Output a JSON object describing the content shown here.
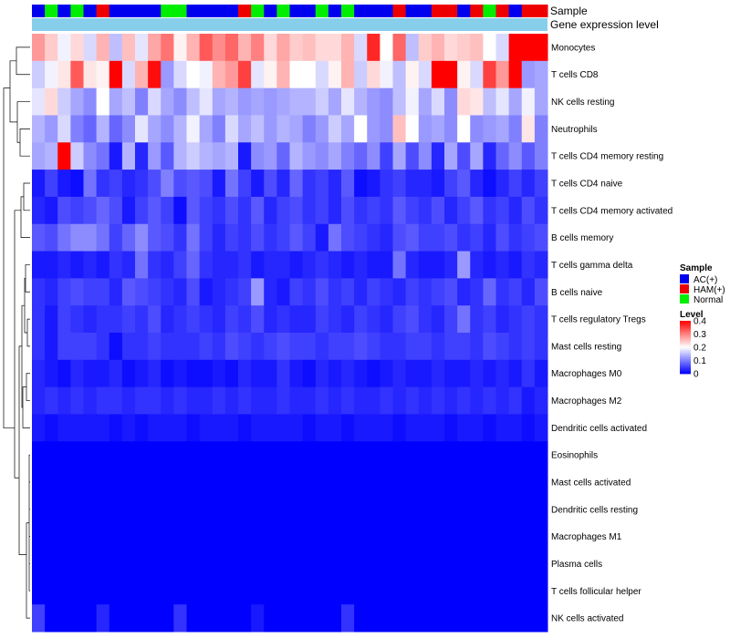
{
  "chart_data": {
    "type": "heatmap",
    "title": "",
    "annotation_labels": {
      "sample": "Sample",
      "expression": "Gene expression level"
    },
    "rows": [
      "Monocytes",
      "T cells CD8",
      "NK cells resting",
      "Neutrophils",
      "T cells CD4 memory resting",
      "T cells CD4 naive",
      "T cells CD4 memory activated",
      "B cells memory",
      "T cells gamma delta",
      "B cells naive",
      "T cells regulatory  Tregs",
      "Mast cells resting",
      "Macrophages M0",
      "Macrophages M2",
      "Dendritic cells activated",
      "Eosinophils",
      "Mast cells activated",
      "Dendritic cells resting",
      "Macrophages M1",
      "Plasma cells",
      "T cells follicular helper",
      "NK cells activated"
    ],
    "sample_groups": [
      "A",
      "N",
      "A",
      "N",
      "A",
      "H",
      "A",
      "A",
      "A",
      "A",
      "N",
      "N",
      "A",
      "A",
      "A",
      "A",
      "H",
      "N",
      "A",
      "N",
      "A",
      "A",
      "N",
      "A",
      "N",
      "A",
      "A",
      "A",
      "H",
      "A",
      "A",
      "H",
      "H",
      "A",
      "H",
      "N",
      "H",
      "A",
      "H",
      "H"
    ],
    "values": [
      [
        0.28,
        0.24,
        0.19,
        0.23,
        0.17,
        0.26,
        0.15,
        0.25,
        0.18,
        0.27,
        0.31,
        0.21,
        0.26,
        0.33,
        0.29,
        0.32,
        0.26,
        0.3,
        0.23,
        0.27,
        0.24,
        0.25,
        0.23,
        0.23,
        0.26,
        0.17,
        0.37,
        0.2,
        0.32,
        0.15,
        0.24,
        0.26,
        0.23,
        0.24,
        0.25,
        0.2,
        0.17,
        0.4,
        0.4,
        0.4
      ],
      [
        0.16,
        0.19,
        0.22,
        0.33,
        0.22,
        0.21,
        0.4,
        0.17,
        0.26,
        0.39,
        0.12,
        0.17,
        0.2,
        0.19,
        0.26,
        0.28,
        0.35,
        0.18,
        0.21,
        0.26,
        0.2,
        0.2,
        0.17,
        0.21,
        0.26,
        0.16,
        0.23,
        0.19,
        0.15,
        0.21,
        0.17,
        0.4,
        0.4,
        0.21,
        0.17,
        0.35,
        0.28,
        0.4,
        0.12,
        0.13
      ],
      [
        0.18,
        0.23,
        0.16,
        0.13,
        0.11,
        0.2,
        0.13,
        0.15,
        0.1,
        0.17,
        0.13,
        0.11,
        0.15,
        0.18,
        0.13,
        0.14,
        0.12,
        0.13,
        0.12,
        0.13,
        0.14,
        0.14,
        0.16,
        0.13,
        0.18,
        0.14,
        0.12,
        0.11,
        0.15,
        0.19,
        0.13,
        0.17,
        0.11,
        0.23,
        0.22,
        0.15,
        0.18,
        0.13,
        0.19,
        0.13
      ],
      [
        0.14,
        0.12,
        0.17,
        0.1,
        0.08,
        0.14,
        0.08,
        0.11,
        0.18,
        0.13,
        0.11,
        0.14,
        0.19,
        0.13,
        0.1,
        0.17,
        0.13,
        0.15,
        0.12,
        0.14,
        0.13,
        0.1,
        0.12,
        0.16,
        0.13,
        0.2,
        0.12,
        0.11,
        0.25,
        0.2,
        0.12,
        0.13,
        0.11,
        0.2,
        0.11,
        0.12,
        0.13,
        0.1,
        0.22,
        0.1
      ],
      [
        0.13,
        0.14,
        0.4,
        0.16,
        0.11,
        0.09,
        0.02,
        0.14,
        0.03,
        0.12,
        0.07,
        0.14,
        0.16,
        0.14,
        0.13,
        0.14,
        0.02,
        0.11,
        0.12,
        0.08,
        0.14,
        0.12,
        0.11,
        0.13,
        0.1,
        0.08,
        0.11,
        0.05,
        0.13,
        0.06,
        0.11,
        0.03,
        0.13,
        0.06,
        0.13,
        0.03,
        0.08,
        0.11,
        0.07,
        0.1
      ],
      [
        0.02,
        0.05,
        0.02,
        0.01,
        0.09,
        0.04,
        0.05,
        0.03,
        0.04,
        0.06,
        0.1,
        0.06,
        0.07,
        0.06,
        0.02,
        0.09,
        0.05,
        0.02,
        0.06,
        0.03,
        0.08,
        0.04,
        0.05,
        0.03,
        0.07,
        0.01,
        0.02,
        0.04,
        0.05,
        0.03,
        0.03,
        0.02,
        0.05,
        0.07,
        0.03,
        0.01,
        0.03,
        0.05,
        0.03,
        0.05
      ],
      [
        0.03,
        0.02,
        0.06,
        0.05,
        0.06,
        0.08,
        0.06,
        0.02,
        0.05,
        0.07,
        0.05,
        0.01,
        0.07,
        0.05,
        0.04,
        0.06,
        0.04,
        0.07,
        0.03,
        0.05,
        0.06,
        0.04,
        0.05,
        0.03,
        0.06,
        0.04,
        0.05,
        0.04,
        0.07,
        0.05,
        0.04,
        0.06,
        0.03,
        0.05,
        0.07,
        0.04,
        0.05,
        0.03,
        0.06,
        0.04
      ],
      [
        0.07,
        0.06,
        0.09,
        0.11,
        0.11,
        0.09,
        0.05,
        0.08,
        0.11,
        0.07,
        0.06,
        0.04,
        0.09,
        0.05,
        0.03,
        0.05,
        0.04,
        0.06,
        0.04,
        0.05,
        0.07,
        0.05,
        0.02,
        0.09,
        0.06,
        0.05,
        0.04,
        0.03,
        0.06,
        0.07,
        0.05,
        0.05,
        0.06,
        0.04,
        0.05,
        0.03,
        0.06,
        0.04,
        0.05,
        0.06
      ],
      [
        0.02,
        0.02,
        0.03,
        0.02,
        0.03,
        0.02,
        0.04,
        0.03,
        0.09,
        0.04,
        0.03,
        0.05,
        0.08,
        0.04,
        0.03,
        0.03,
        0.04,
        0.02,
        0.03,
        0.03,
        0.02,
        0.03,
        0.04,
        0.03,
        0.02,
        0.03,
        0.02,
        0.02,
        0.09,
        0.03,
        0.02,
        0.02,
        0.03,
        0.12,
        0.03,
        0.02,
        0.03,
        0.02,
        0.04,
        0.03
      ],
      [
        0.04,
        0.03,
        0.05,
        0.06,
        0.05,
        0.05,
        0.03,
        0.07,
        0.06,
        0.05,
        0.04,
        0.03,
        0.06,
        0.02,
        0.03,
        0.04,
        0.05,
        0.12,
        0.03,
        0.02,
        0.05,
        0.04,
        0.06,
        0.04,
        0.05,
        0.03,
        0.05,
        0.04,
        0.03,
        0.05,
        0.04,
        0.05,
        0.06,
        0.03,
        0.04,
        0.08,
        0.04,
        0.05,
        0.03,
        0.06
      ],
      [
        0.04,
        0.02,
        0.05,
        0.04,
        0.03,
        0.04,
        0.04,
        0.05,
        0.04,
        0.06,
        0.03,
        0.04,
        0.05,
        0.04,
        0.03,
        0.05,
        0.04,
        0.06,
        0.03,
        0.04,
        0.03,
        0.03,
        0.05,
        0.04,
        0.03,
        0.05,
        0.04,
        0.03,
        0.05,
        0.06,
        0.04,
        0.03,
        0.05,
        0.09,
        0.04,
        0.05,
        0.03,
        0.04,
        0.05,
        0.04
      ],
      [
        0.04,
        0.02,
        0.05,
        0.05,
        0.05,
        0.04,
        0.01,
        0.04,
        0.04,
        0.05,
        0.04,
        0.04,
        0.04,
        0.05,
        0.04,
        0.06,
        0.05,
        0.04,
        0.05,
        0.06,
        0.05,
        0.05,
        0.04,
        0.05,
        0.05,
        0.06,
        0.05,
        0.04,
        0.04,
        0.05,
        0.05,
        0.04,
        0.05,
        0.05,
        0.04,
        0.06,
        0.05,
        0.04,
        0.05,
        0.04
      ],
      [
        0.03,
        0.02,
        0.01,
        0.03,
        0.02,
        0.02,
        0.03,
        0.01,
        0.02,
        0.03,
        0.01,
        0.02,
        0.01,
        0.01,
        0.02,
        0.01,
        0.03,
        0.02,
        0.02,
        0.04,
        0.02,
        0.01,
        0.03,
        0.02,
        0.03,
        0.02,
        0.01,
        0.02,
        0.03,
        0.02,
        0.02,
        0.03,
        0.02,
        0.02,
        0.03,
        0.02,
        0.03,
        0.02,
        0.04,
        0.02
      ],
      [
        0.03,
        0.04,
        0.03,
        0.04,
        0.03,
        0.04,
        0.04,
        0.03,
        0.04,
        0.04,
        0.03,
        0.04,
        0.03,
        0.03,
        0.04,
        0.03,
        0.04,
        0.03,
        0.03,
        0.04,
        0.03,
        0.03,
        0.04,
        0.03,
        0.04,
        0.03,
        0.03,
        0.04,
        0.03,
        0.04,
        0.03,
        0.04,
        0.03,
        0.04,
        0.03,
        0.04,
        0.03,
        0.04,
        0.02,
        0.03
      ],
      [
        0.02,
        0.01,
        0.02,
        0.02,
        0.02,
        0.02,
        0.01,
        0.02,
        0.01,
        0.02,
        0.02,
        0.02,
        0.01,
        0.02,
        0.02,
        0.02,
        0.01,
        0.02,
        0.02,
        0.02,
        0.02,
        0.01,
        0.02,
        0.02,
        0.01,
        0.02,
        0.02,
        0.02,
        0.01,
        0.02,
        0.02,
        0.02,
        0.01,
        0.02,
        0.02,
        0.01,
        0.02,
        0.02,
        0.01,
        0.02
      ],
      [
        0,
        0,
        0,
        0,
        0,
        0,
        0,
        0,
        0,
        0,
        0,
        0,
        0,
        0,
        0,
        0,
        0,
        0,
        0,
        0,
        0,
        0,
        0,
        0,
        0,
        0,
        0,
        0,
        0,
        0,
        0,
        0,
        0,
        0,
        0,
        0,
        0,
        0,
        0,
        0
      ],
      [
        0,
        0,
        0,
        0,
        0,
        0,
        0,
        0,
        0,
        0,
        0,
        0,
        0,
        0,
        0,
        0,
        0,
        0,
        0,
        0,
        0,
        0,
        0,
        0,
        0,
        0,
        0,
        0,
        0,
        0,
        0,
        0,
        0,
        0,
        0,
        0,
        0,
        0,
        0,
        0
      ],
      [
        0,
        0,
        0,
        0,
        0,
        0,
        0,
        0,
        0,
        0,
        0,
        0,
        0,
        0,
        0,
        0,
        0,
        0,
        0,
        0,
        0,
        0,
        0,
        0,
        0,
        0,
        0,
        0,
        0,
        0,
        0,
        0,
        0,
        0,
        0,
        0,
        0,
        0,
        0,
        0
      ],
      [
        0,
        0,
        0,
        0,
        0,
        0,
        0,
        0,
        0,
        0,
        0,
        0,
        0,
        0,
        0,
        0,
        0,
        0,
        0,
        0,
        0,
        0,
        0,
        0,
        0,
        0,
        0,
        0,
        0,
        0,
        0,
        0,
        0,
        0,
        0,
        0,
        0,
        0,
        0,
        0
      ],
      [
        0,
        0,
        0,
        0,
        0,
        0,
        0,
        0,
        0,
        0,
        0,
        0,
        0,
        0,
        0,
        0,
        0,
        0,
        0,
        0,
        0,
        0,
        0,
        0,
        0,
        0,
        0,
        0,
        0,
        0,
        0,
        0,
        0,
        0,
        0,
        0,
        0,
        0,
        0,
        0
      ],
      [
        0,
        0,
        0,
        0,
        0,
        0,
        0,
        0,
        0,
        0,
        0,
        0,
        0,
        0,
        0,
        0,
        0,
        0,
        0,
        0,
        0,
        0,
        0,
        0,
        0,
        0,
        0,
        0,
        0,
        0,
        0,
        0,
        0,
        0,
        0,
        0,
        0,
        0,
        0,
        0
      ],
      [
        0.05,
        0,
        0,
        0,
        0,
        0.03,
        0,
        0,
        0,
        0,
        0,
        0.04,
        0,
        0,
        0,
        0,
        0,
        0.02,
        0,
        0,
        0,
        0,
        0,
        0,
        0.04,
        0,
        0,
        0,
        0,
        0,
        0,
        0,
        0,
        0,
        0,
        0,
        0,
        0,
        0,
        0
      ]
    ],
    "color_scale": {
      "min": 0,
      "max": 0.4,
      "mid": 0.2,
      "low_color": "#0000ff",
      "mid_color": "#ffffff",
      "high_color": "#ff0000"
    },
    "sample_legend": {
      "title": "Sample",
      "items": [
        {
          "key": "A",
          "label": "AC(+)",
          "color": "#0000ee"
        },
        {
          "key": "H",
          "label": "HAM(+)",
          "color": "#ee0000"
        },
        {
          "key": "N",
          "label": "Normal",
          "color": "#00ee00"
        }
      ]
    },
    "expression_color": "#87ceeb",
    "level_legend": {
      "title": "Level",
      "ticks": [
        "0.4",
        "0.3",
        "0.2",
        "0.1",
        "0"
      ],
      "tick_values": [
        0.4,
        0.3,
        0.2,
        0.1,
        0
      ]
    }
  }
}
